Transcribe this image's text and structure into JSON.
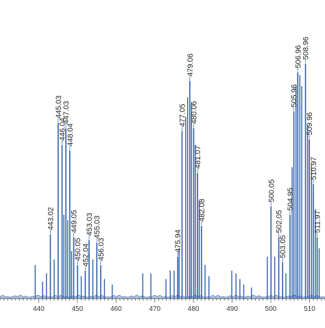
{
  "chart_data": {
    "type": "line",
    "title": "",
    "xlabel": "",
    "ylabel": "",
    "xlim": [
      430,
      514
    ],
    "ylim": [
      0,
      100
    ],
    "grid": false,
    "x_ticks": [
      440,
      450,
      460,
      470,
      480,
      490,
      500,
      510
    ],
    "colors": {
      "line": "#2a5caa",
      "leader": "#4a78c0",
      "axis": "#555555",
      "text": "#222222"
    },
    "labeled_peaks": [
      {
        "x": 443.02,
        "y": 23,
        "label": "443.02"
      },
      {
        "x": 445.03,
        "y": 63,
        "label": "445.03"
      },
      {
        "x": 446.04,
        "y": 55,
        "label": "446.04"
      },
      {
        "x": 447.03,
        "y": 61,
        "label": "447.03"
      },
      {
        "x": 448.04,
        "y": 53,
        "label": "448.04"
      },
      {
        "x": 449.05,
        "y": 22,
        "label": "449.05"
      },
      {
        "x": 450.05,
        "y": 12,
        "label": "450.05"
      },
      {
        "x": 452.04,
        "y": 10,
        "label": "452.04"
      },
      {
        "x": 453.03,
        "y": 21,
        "label": "453.03"
      },
      {
        "x": 455.03,
        "y": 20,
        "label": "455.03"
      },
      {
        "x": 456.03,
        "y": 12,
        "label": "456.03"
      },
      {
        "x": 475.94,
        "y": 15,
        "label": "475.94"
      },
      {
        "x": 477.05,
        "y": 60,
        "label": "477.05"
      },
      {
        "x": 479.06,
        "y": 78,
        "label": "479.06"
      },
      {
        "x": 480.06,
        "y": 61,
        "label": "480.06"
      },
      {
        "x": 481.07,
        "y": 45,
        "label": "481.07"
      },
      {
        "x": 482.08,
        "y": 26,
        "label": "482.08"
      },
      {
        "x": 500.05,
        "y": 33,
        "label": "500.05"
      },
      {
        "x": 502.05,
        "y": 22,
        "label": "502.05"
      },
      {
        "x": 503.05,
        "y": 13,
        "label": "503.05"
      },
      {
        "x": 504.95,
        "y": 30,
        "label": "504.95"
      },
      {
        "x": 505.96,
        "y": 67,
        "label": "505.96"
      },
      {
        "x": 506.96,
        "y": 81,
        "label": "506.96"
      },
      {
        "x": 508.96,
        "y": 84,
        "label": "508.96"
      },
      {
        "x": 509.96,
        "y": 57,
        "label": "509.96"
      },
      {
        "x": 510.97,
        "y": 41,
        "label": "510.97"
      },
      {
        "x": 511.97,
        "y": 22,
        "label": "511.97"
      }
    ],
    "minor_peaks": [
      {
        "x": 439.1,
        "y": 12
      },
      {
        "x": 441.0,
        "y": 6
      },
      {
        "x": 442.0,
        "y": 9
      },
      {
        "x": 444.0,
        "y": 14
      },
      {
        "x": 446.5,
        "y": 30
      },
      {
        "x": 447.5,
        "y": 28
      },
      {
        "x": 448.5,
        "y": 17
      },
      {
        "x": 451.0,
        "y": 8
      },
      {
        "x": 454.0,
        "y": 14
      },
      {
        "x": 457.0,
        "y": 7
      },
      {
        "x": 459.0,
        "y": 5
      },
      {
        "x": 466.9,
        "y": 9
      },
      {
        "x": 469.0,
        "y": 9
      },
      {
        "x": 472.9,
        "y": 7
      },
      {
        "x": 474.0,
        "y": 10
      },
      {
        "x": 475.0,
        "y": 10
      },
      {
        "x": 476.3,
        "y": 18
      },
      {
        "x": 478.0,
        "y": 65
      },
      {
        "x": 478.5,
        "y": 72
      },
      {
        "x": 479.5,
        "y": 70
      },
      {
        "x": 480.5,
        "y": 55
      },
      {
        "x": 481.5,
        "y": 35
      },
      {
        "x": 483.0,
        "y": 12
      },
      {
        "x": 484.0,
        "y": 8
      },
      {
        "x": 489.9,
        "y": 10
      },
      {
        "x": 491.0,
        "y": 9
      },
      {
        "x": 492.0,
        "y": 7
      },
      {
        "x": 493.0,
        "y": 5
      },
      {
        "x": 495.0,
        "y": 4
      },
      {
        "x": 499.1,
        "y": 15
      },
      {
        "x": 501.0,
        "y": 15
      },
      {
        "x": 503.9,
        "y": 9
      },
      {
        "x": 505.5,
        "y": 47
      },
      {
        "x": 506.5,
        "y": 76
      },
      {
        "x": 507.5,
        "y": 80
      },
      {
        "x": 508.0,
        "y": 76
      },
      {
        "x": 509.5,
        "y": 62
      },
      {
        "x": 510.5,
        "y": 48
      },
      {
        "x": 511.5,
        "y": 32
      },
      {
        "x": 512.5,
        "y": 18
      }
    ]
  }
}
